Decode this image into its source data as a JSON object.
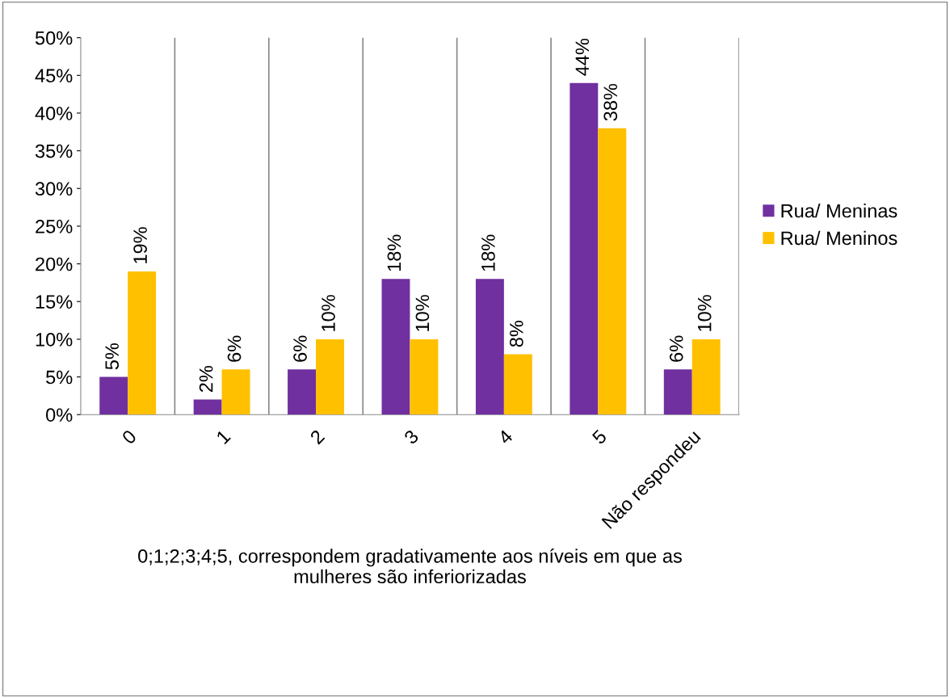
{
  "chart_data": {
    "type": "bar",
    "xlabel": "0;1;2;3;4;5, correspondem gradativamente aos níveis em que as\nmulheres são inferiorizadas",
    "categories": [
      "0",
      "1",
      "2",
      "3",
      "4",
      "5",
      "Não respondeu"
    ],
    "series": [
      {
        "name": "Rua/ Meninas",
        "color": "#7030a0",
        "values": [
          5,
          2,
          6,
          18,
          18,
          44,
          6
        ],
        "value_labels": [
          "5%",
          "2%",
          "6%",
          "18%",
          "18%",
          "44%",
          "6%"
        ]
      },
      {
        "name": "Rua/ Meninos",
        "color": "#ffc000",
        "values": [
          19,
          6,
          10,
          10,
          8,
          38,
          10
        ],
        "value_labels": [
          "19%",
          "6%",
          "10%",
          "10%",
          "8%",
          "38%",
          "10%"
        ]
      }
    ],
    "ylim": [
      0,
      50
    ],
    "yticks": [
      {
        "value": 0,
        "label": "0%"
      },
      {
        "value": 5,
        "label": "5%"
      },
      {
        "value": 10,
        "label": "10%"
      },
      {
        "value": 15,
        "label": "15%"
      },
      {
        "value": 20,
        "label": "20%"
      },
      {
        "value": 25,
        "label": "25%"
      },
      {
        "value": 30,
        "label": "30%"
      },
      {
        "value": 35,
        "label": "35%"
      },
      {
        "value": 40,
        "label": "40%"
      },
      {
        "value": 45,
        "label": "45%"
      },
      {
        "value": 50,
        "label": "50%"
      }
    ],
    "grid": "x",
    "legend": "right"
  }
}
